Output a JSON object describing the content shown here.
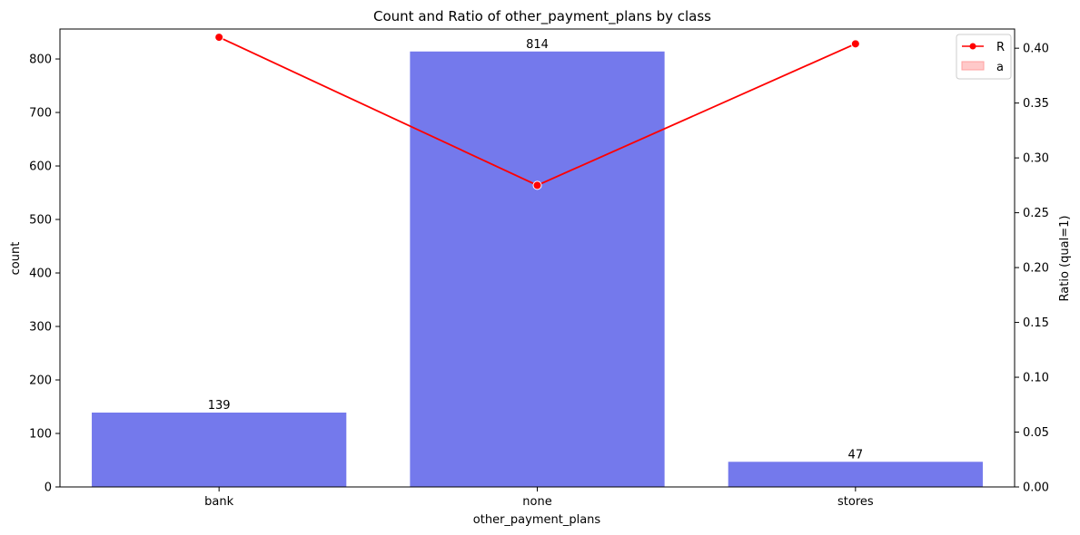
{
  "chart_data": {
    "type": "bar",
    "title": "Count and Ratio of other_payment_plans by class",
    "xlabel": "other_payment_plans",
    "ylabel": "count",
    "y2label": "Ratio (qual=1)",
    "categories": [
      "bank",
      "none",
      "stores"
    ],
    "series": [
      {
        "type": "bar",
        "values": [
          139,
          814,
          47
        ],
        "color": "#7479ec"
      },
      {
        "type": "line",
        "axis": "right",
        "name": "R",
        "values": [
          0.41,
          0.275,
          0.404
        ],
        "color": "#ff0000"
      }
    ],
    "data_labels": [
      "139",
      "814",
      "47"
    ],
    "ylim": [
      0,
      856
    ],
    "y2lim": [
      0,
      0.4175
    ],
    "yticks": [
      0,
      100,
      200,
      300,
      400,
      500,
      600,
      700,
      800
    ],
    "y2ticks": [
      "0.00",
      "0.05",
      "0.10",
      "0.15",
      "0.20",
      "0.25",
      "0.30",
      "0.35",
      "0.40"
    ],
    "legend": {
      "placement": "top-right",
      "entries": [
        {
          "label": "R",
          "kind": "line-marker",
          "color": "#ff0000"
        },
        {
          "label": "a",
          "kind": "patch",
          "color": "#ffc9c9"
        }
      ]
    },
    "grid": false
  }
}
